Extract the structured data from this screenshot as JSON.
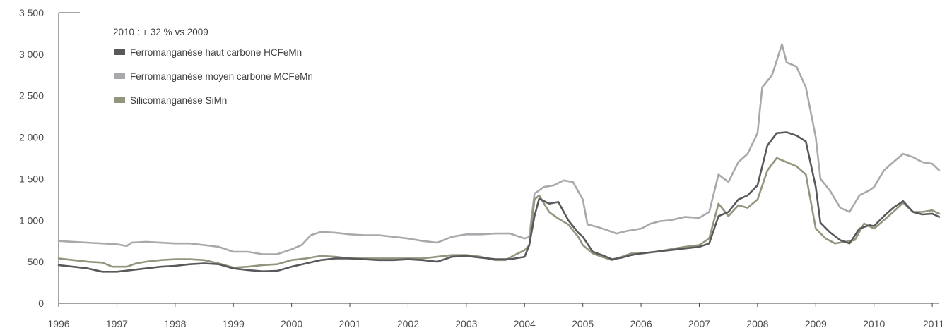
{
  "chart_data": {
    "type": "line",
    "annotation": "2010 : + 32 % vs 2009",
    "x_tick_labels": [
      "1996",
      "1997",
      "1998",
      "1999",
      "2000",
      "2001",
      "2002",
      "2003",
      "2004",
      "2005",
      "2006",
      "2007",
      "2008",
      "2009",
      "2010",
      "2011"
    ],
    "y_tick_labels": [
      "0",
      "500",
      "1 000",
      "1 500",
      "2 000",
      "2 500",
      "3 000",
      "3 500"
    ],
    "y_ticks": [
      0,
      500,
      1000,
      1500,
      2000,
      2500,
      3000,
      3500
    ],
    "xlim": [
      1996.0,
      2011.12
    ],
    "ylim": [
      0,
      3500
    ],
    "grid": false,
    "legend_position": "top-left",
    "series": [
      {
        "name": "Ferromanganèse haut carbone HCFeMn",
        "color": "#58595b",
        "points": [
          [
            1996.0,
            460
          ],
          [
            1996.25,
            440
          ],
          [
            1996.5,
            420
          ],
          [
            1996.75,
            380
          ],
          [
            1997.0,
            380
          ],
          [
            1997.25,
            400
          ],
          [
            1997.5,
            420
          ],
          [
            1997.75,
            440
          ],
          [
            1998.0,
            450
          ],
          [
            1998.25,
            470
          ],
          [
            1998.5,
            480
          ],
          [
            1998.75,
            470
          ],
          [
            1999.0,
            420
          ],
          [
            1999.25,
            400
          ],
          [
            1999.5,
            385
          ],
          [
            1999.75,
            390
          ],
          [
            2000.0,
            440
          ],
          [
            2000.25,
            480
          ],
          [
            2000.5,
            520
          ],
          [
            2000.75,
            540
          ],
          [
            2001.0,
            540
          ],
          [
            2001.25,
            530
          ],
          [
            2001.5,
            520
          ],
          [
            2001.75,
            520
          ],
          [
            2002.0,
            530
          ],
          [
            2002.25,
            520
          ],
          [
            2002.5,
            500
          ],
          [
            2002.75,
            560
          ],
          [
            2003.0,
            570
          ],
          [
            2003.25,
            550
          ],
          [
            2003.5,
            530
          ],
          [
            2003.75,
            530
          ],
          [
            2004.0,
            560
          ],
          [
            2004.08,
            700
          ],
          [
            2004.17,
            1050
          ],
          [
            2004.25,
            1260
          ],
          [
            2004.42,
            1200
          ],
          [
            2004.58,
            1220
          ],
          [
            2004.75,
            1000
          ],
          [
            2004.92,
            850
          ],
          [
            2005.0,
            800
          ],
          [
            2005.17,
            620
          ],
          [
            2005.33,
            580
          ],
          [
            2005.5,
            530
          ],
          [
            2005.67,
            550
          ],
          [
            2005.83,
            580
          ],
          [
            2006.0,
            600
          ],
          [
            2006.25,
            620
          ],
          [
            2006.5,
            640
          ],
          [
            2006.75,
            660
          ],
          [
            2007.0,
            680
          ],
          [
            2007.17,
            720
          ],
          [
            2007.33,
            1050
          ],
          [
            2007.5,
            1100
          ],
          [
            2007.67,
            1250
          ],
          [
            2007.83,
            1300
          ],
          [
            2008.0,
            1420
          ],
          [
            2008.17,
            1900
          ],
          [
            2008.33,
            2050
          ],
          [
            2008.5,
            2060
          ],
          [
            2008.67,
            2020
          ],
          [
            2008.83,
            1950
          ],
          [
            2009.0,
            1400
          ],
          [
            2009.08,
            970
          ],
          [
            2009.25,
            850
          ],
          [
            2009.42,
            760
          ],
          [
            2009.58,
            720
          ],
          [
            2009.75,
            900
          ],
          [
            2009.92,
            940
          ],
          [
            2010.0,
            930
          ],
          [
            2010.17,
            1050
          ],
          [
            2010.33,
            1150
          ],
          [
            2010.5,
            1230
          ],
          [
            2010.67,
            1100
          ],
          [
            2010.83,
            1070
          ],
          [
            2011.0,
            1080
          ],
          [
            2011.12,
            1040
          ]
        ]
      },
      {
        "name": "Ferromanganèse moyen carbone MCFeMn",
        "color": "#a7a9ac",
        "points": [
          [
            1996.0,
            750
          ],
          [
            1996.25,
            740
          ],
          [
            1996.5,
            730
          ],
          [
            1996.75,
            720
          ],
          [
            1997.0,
            710
          ],
          [
            1997.17,
            690
          ],
          [
            1997.25,
            730
          ],
          [
            1997.5,
            740
          ],
          [
            1997.75,
            730
          ],
          [
            1998.0,
            720
          ],
          [
            1998.25,
            720
          ],
          [
            1998.5,
            700
          ],
          [
            1998.75,
            680
          ],
          [
            1999.0,
            620
          ],
          [
            1999.25,
            620
          ],
          [
            1999.5,
            590
          ],
          [
            1999.75,
            590
          ],
          [
            2000.0,
            650
          ],
          [
            2000.17,
            700
          ],
          [
            2000.33,
            820
          ],
          [
            2000.5,
            860
          ],
          [
            2000.75,
            850
          ],
          [
            2001.0,
            830
          ],
          [
            2001.25,
            820
          ],
          [
            2001.5,
            820
          ],
          [
            2001.75,
            800
          ],
          [
            2002.0,
            780
          ],
          [
            2002.25,
            750
          ],
          [
            2002.5,
            730
          ],
          [
            2002.75,
            800
          ],
          [
            2003.0,
            830
          ],
          [
            2003.25,
            830
          ],
          [
            2003.5,
            840
          ],
          [
            2003.75,
            840
          ],
          [
            2004.0,
            780
          ],
          [
            2004.08,
            800
          ],
          [
            2004.17,
            1320
          ],
          [
            2004.33,
            1400
          ],
          [
            2004.5,
            1420
          ],
          [
            2004.67,
            1480
          ],
          [
            2004.83,
            1460
          ],
          [
            2005.0,
            1250
          ],
          [
            2005.08,
            950
          ],
          [
            2005.25,
            920
          ],
          [
            2005.42,
            880
          ],
          [
            2005.58,
            840
          ],
          [
            2005.75,
            870
          ],
          [
            2006.0,
            900
          ],
          [
            2006.17,
            960
          ],
          [
            2006.33,
            990
          ],
          [
            2006.5,
            1000
          ],
          [
            2006.75,
            1040
          ],
          [
            2007.0,
            1030
          ],
          [
            2007.17,
            1100
          ],
          [
            2007.33,
            1550
          ],
          [
            2007.5,
            1460
          ],
          [
            2007.67,
            1700
          ],
          [
            2007.83,
            1800
          ],
          [
            2008.0,
            2050
          ],
          [
            2008.08,
            2600
          ],
          [
            2008.25,
            2750
          ],
          [
            2008.42,
            3120
          ],
          [
            2008.5,
            2900
          ],
          [
            2008.67,
            2850
          ],
          [
            2008.83,
            2600
          ],
          [
            2009.0,
            2000
          ],
          [
            2009.08,
            1500
          ],
          [
            2009.25,
            1350
          ],
          [
            2009.42,
            1150
          ],
          [
            2009.58,
            1100
          ],
          [
            2009.75,
            1300
          ],
          [
            2009.92,
            1360
          ],
          [
            2010.0,
            1400
          ],
          [
            2010.17,
            1600
          ],
          [
            2010.33,
            1700
          ],
          [
            2010.5,
            1800
          ],
          [
            2010.67,
            1760
          ],
          [
            2010.83,
            1700
          ],
          [
            2011.0,
            1680
          ],
          [
            2011.12,
            1600
          ]
        ]
      },
      {
        "name": "Silicomanganèse SiMn",
        "color": "#93957e",
        "points": [
          [
            1996.0,
            540
          ],
          [
            1996.25,
            520
          ],
          [
            1996.5,
            500
          ],
          [
            1996.75,
            490
          ],
          [
            1996.92,
            440
          ],
          [
            1997.17,
            440
          ],
          [
            1997.33,
            480
          ],
          [
            1997.5,
            500
          ],
          [
            1997.75,
            520
          ],
          [
            1998.0,
            530
          ],
          [
            1998.25,
            530
          ],
          [
            1998.5,
            520
          ],
          [
            1998.75,
            480
          ],
          [
            1999.0,
            430
          ],
          [
            1999.25,
            440
          ],
          [
            1999.5,
            460
          ],
          [
            1999.75,
            470
          ],
          [
            2000.0,
            520
          ],
          [
            2000.25,
            540
          ],
          [
            2000.5,
            570
          ],
          [
            2000.75,
            560
          ],
          [
            2001.0,
            540
          ],
          [
            2001.25,
            540
          ],
          [
            2001.5,
            540
          ],
          [
            2001.75,
            540
          ],
          [
            2002.0,
            540
          ],
          [
            2002.25,
            540
          ],
          [
            2002.5,
            560
          ],
          [
            2002.75,
            580
          ],
          [
            2003.0,
            580
          ],
          [
            2003.25,
            560
          ],
          [
            2003.5,
            520
          ],
          [
            2003.67,
            520
          ],
          [
            2003.83,
            580
          ],
          [
            2004.0,
            640
          ],
          [
            2004.08,
            700
          ],
          [
            2004.17,
            1250
          ],
          [
            2004.25,
            1300
          ],
          [
            2004.42,
            1100
          ],
          [
            2004.58,
            1020
          ],
          [
            2004.75,
            950
          ],
          [
            2004.92,
            800
          ],
          [
            2005.0,
            700
          ],
          [
            2005.17,
            600
          ],
          [
            2005.33,
            560
          ],
          [
            2005.5,
            520
          ],
          [
            2005.67,
            560
          ],
          [
            2005.83,
            600
          ],
          [
            2006.0,
            600
          ],
          [
            2006.25,
            620
          ],
          [
            2006.5,
            650
          ],
          [
            2006.75,
            680
          ],
          [
            2007.0,
            700
          ],
          [
            2007.17,
            780
          ],
          [
            2007.33,
            1200
          ],
          [
            2007.5,
            1050
          ],
          [
            2007.67,
            1180
          ],
          [
            2007.83,
            1150
          ],
          [
            2008.0,
            1250
          ],
          [
            2008.17,
            1600
          ],
          [
            2008.33,
            1750
          ],
          [
            2008.5,
            1700
          ],
          [
            2008.67,
            1650
          ],
          [
            2008.83,
            1550
          ],
          [
            2009.0,
            900
          ],
          [
            2009.17,
            780
          ],
          [
            2009.33,
            720
          ],
          [
            2009.5,
            740
          ],
          [
            2009.67,
            760
          ],
          [
            2009.83,
            960
          ],
          [
            2010.0,
            900
          ],
          [
            2010.17,
            1000
          ],
          [
            2010.33,
            1100
          ],
          [
            2010.5,
            1210
          ],
          [
            2010.67,
            1100
          ],
          [
            2010.83,
            1100
          ],
          [
            2011.0,
            1120
          ],
          [
            2011.12,
            1080
          ]
        ]
      }
    ]
  }
}
